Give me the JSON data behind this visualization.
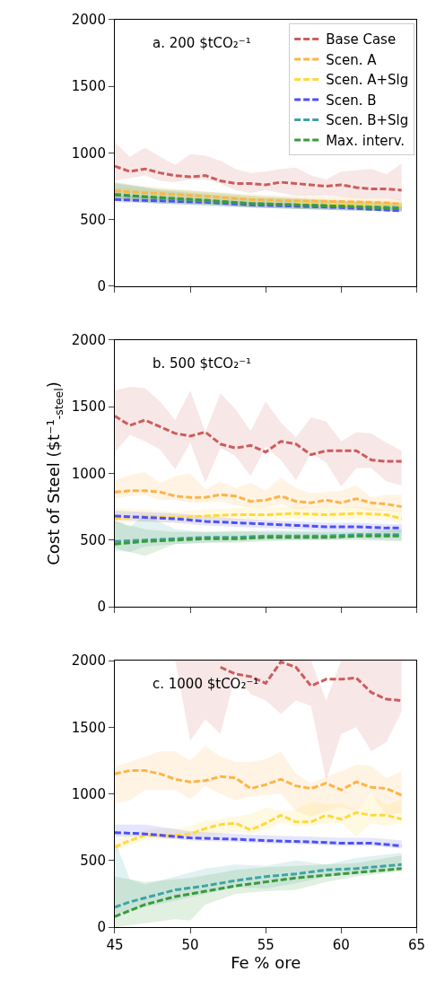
{
  "chart_data": [
    {
      "type": "line",
      "annotations": [
        "a. 200 $tCO₂⁻¹"
      ],
      "xlim": [
        45,
        65
      ],
      "xticks": [
        45,
        50,
        55,
        60,
        65
      ],
      "ylim": [
        0,
        2000
      ],
      "yticks": [
        0,
        500,
        1000,
        1500,
        2000
      ],
      "tick_labels": "y",
      "legend": "top right",
      "line_style": "dashed",
      "series": [
        {
          "name": "Base Case",
          "color": "#cd5c5c",
          "x": [
            45,
            46,
            47,
            48,
            49,
            50,
            51,
            52,
            53,
            54,
            55,
            56,
            57,
            58,
            59,
            60,
            61,
            62,
            63,
            64
          ],
          "values": [
            900,
            860,
            880,
            850,
            830,
            820,
            830,
            790,
            770,
            770,
            760,
            780,
            770,
            760,
            750,
            760,
            740,
            730,
            730,
            720
          ],
          "lower": [
            790,
            810,
            830,
            790,
            780,
            800,
            800,
            770,
            720,
            700,
            720,
            700,
            680,
            680,
            680,
            670,
            660,
            660,
            660,
            640
          ],
          "upper": [
            1080,
            970,
            1040,
            970,
            910,
            990,
            980,
            940,
            880,
            850,
            860,
            880,
            890,
            830,
            800,
            860,
            870,
            880,
            840,
            920
          ]
        },
        {
          "name": "Scen. A",
          "color": "#ffb347",
          "x": [
            45,
            48,
            51,
            54,
            57,
            60,
            63,
            64
          ],
          "values": [
            715,
            695,
            675,
            650,
            640,
            635,
            625,
            615
          ],
          "lower": [
            660,
            640,
            620,
            600,
            590,
            590,
            580,
            570
          ],
          "upper": [
            780,
            740,
            710,
            690,
            680,
            670,
            660,
            650
          ]
        },
        {
          "name": "Scen. A+Slg",
          "color": "#ffd93d",
          "x": [
            45,
            48,
            51,
            54,
            57,
            60,
            64
          ],
          "values": [
            null,
            null,
            null,
            null,
            620,
            610,
            600
          ],
          "lower": [
            650,
            630,
            610,
            590,
            580,
            570,
            560
          ],
          "upper": [
            740,
            720,
            700,
            680,
            660,
            650,
            640
          ]
        },
        {
          "name": "Scen. B",
          "color": "#4f4ff5",
          "x": [
            45,
            48,
            51,
            54,
            57,
            60,
            64
          ],
          "values": [
            650,
            640,
            630,
            610,
            600,
            590,
            565
          ],
          "lower": [
            630,
            620,
            610,
            590,
            580,
            570,
            560
          ],
          "upper": [
            680,
            670,
            650,
            630,
            620,
            610,
            600
          ]
        },
        {
          "name": "Scen. B+Slg",
          "color": "#3fa3a3",
          "x": [
            45,
            48,
            51,
            54,
            57,
            60,
            64
          ],
          "values": [
            690,
            660,
            640,
            620,
            610,
            600,
            590
          ],
          "lower": [
            640,
            620,
            600,
            590,
            580,
            570,
            560
          ],
          "upper": [
            780,
            720,
            690,
            660,
            650,
            640,
            630
          ]
        },
        {
          "name": "Max. interv.",
          "color": "#3a9a3a",
          "x": [
            45,
            48,
            51,
            54,
            57,
            60,
            64
          ],
          "values": [
            685,
            665,
            645,
            620,
            610,
            600,
            580
          ],
          "lower": [
            640,
            620,
            610,
            590,
            580,
            570,
            560
          ],
          "upper": [
            770,
            730,
            710,
            680,
            660,
            640,
            620
          ]
        }
      ]
    },
    {
      "type": "line",
      "annotations": [
        "b. 500 $tCO₂⁻¹"
      ],
      "ylabel": "Cost of Steel ($t⁻¹$_{-steel}$)",
      "xlim": [
        45,
        65
      ],
      "xticks": [
        45,
        50,
        55,
        60,
        65
      ],
      "ylim": [
        0,
        2000
      ],
      "yticks": [
        0,
        500,
        1000,
        1500,
        2000
      ],
      "tick_labels": "y",
      "line_style": "dashed",
      "series": [
        {
          "color": "#cd5c5c",
          "x": [
            45,
            46,
            47,
            48,
            49,
            50,
            51,
            52,
            53,
            54,
            55,
            56,
            57,
            58,
            59,
            60,
            61,
            62,
            63,
            64
          ],
          "values": [
            1430,
            1360,
            1400,
            1350,
            1300,
            1280,
            1310,
            1220,
            1190,
            1210,
            1160,
            1240,
            1220,
            1140,
            1170,
            1170,
            1170,
            1100,
            1090,
            1090
          ],
          "lower": [
            1160,
            1290,
            1240,
            1180,
            1030,
            1230,
            930,
            1190,
            1130,
            980,
            1200,
            1100,
            950,
            1150,
            1080,
            900,
            1040,
            1040,
            940,
            910
          ],
          "upper": [
            1620,
            1650,
            1640,
            1540,
            1400,
            1620,
            1310,
            1600,
            1480,
            1320,
            1540,
            1380,
            1270,
            1420,
            1390,
            1240,
            1310,
            1300,
            1230,
            1170
          ]
        },
        {
          "color": "#ffb347",
          "x": [
            45,
            46,
            47,
            48,
            49,
            50,
            51,
            52,
            53,
            54,
            55,
            56,
            57,
            58,
            59,
            60,
            61,
            62,
            63,
            64
          ],
          "values": [
            860,
            870,
            870,
            860,
            830,
            820,
            820,
            840,
            830,
            790,
            800,
            830,
            790,
            780,
            800,
            780,
            810,
            780,
            770,
            750
          ],
          "lower": [
            810,
            830,
            840,
            800,
            800,
            780,
            780,
            790,
            760,
            740,
            740,
            770,
            730,
            740,
            740,
            740,
            740,
            720,
            720,
            710
          ],
          "upper": [
            950,
            990,
            1010,
            930,
            980,
            1000,
            880,
            940,
            890,
            930,
            870,
            970,
            890,
            850,
            860,
            870,
            910,
            820,
            840,
            840
          ]
        },
        {
          "color": "#ffd93d",
          "x": [
            45,
            47,
            49,
            51,
            53,
            55,
            57,
            59,
            61,
            63,
            64
          ],
          "values": [
            660,
            680,
            670,
            680,
            690,
            690,
            700,
            690,
            700,
            690,
            660
          ],
          "lower": [
            620,
            640,
            630,
            640,
            650,
            650,
            660,
            650,
            660,
            650,
            620
          ],
          "upper": [
            740,
            730,
            710,
            730,
            740,
            740,
            750,
            740,
            750,
            730,
            720
          ]
        },
        {
          "color": "#4f4ff5",
          "x": [
            45,
            47,
            49,
            51,
            53,
            55,
            57,
            59,
            61,
            63,
            64
          ],
          "values": [
            680,
            670,
            660,
            640,
            630,
            620,
            610,
            600,
            600,
            590,
            590
          ],
          "lower": [
            650,
            640,
            630,
            610,
            600,
            590,
            580,
            570,
            570,
            560,
            560
          ],
          "upper": [
            720,
            710,
            700,
            680,
            660,
            650,
            640,
            630,
            630,
            620,
            620
          ]
        },
        {
          "color": "#3fa3a3",
          "x": [
            45,
            46,
            47,
            49,
            51,
            53,
            55,
            57,
            59,
            61,
            64
          ],
          "values": [
            490,
            495,
            500,
            510,
            520,
            520,
            530,
            530,
            530,
            540,
            540
          ],
          "lower": [
            420,
            410,
            450,
            470,
            480,
            490,
            500,
            500,
            500,
            510,
            500
          ],
          "upper": [
            650,
            600,
            690,
            580,
            560,
            560,
            570,
            570,
            570,
            570,
            580
          ]
        },
        {
          "color": "#3a9a3a",
          "x": [
            45,
            47,
            49,
            51,
            53,
            55,
            57,
            59,
            61,
            64
          ],
          "values": [
            470,
            490,
            500,
            510,
            510,
            520,
            520,
            520,
            530,
            530
          ],
          "lower": [
            440,
            380,
            470,
            480,
            480,
            490,
            500,
            500,
            500,
            490
          ],
          "upper": [
            640,
            580,
            560,
            560,
            570,
            560,
            560,
            560,
            560,
            570
          ]
        }
      ]
    },
    {
      "type": "line",
      "annotations": [
        "c. 1000 $tCO₂⁻¹"
      ],
      "xlabel": "Fe % ore",
      "xlim": [
        45,
        65
      ],
      "xticks": [
        45,
        50,
        55,
        60,
        65
      ],
      "ylim": [
        0,
        2000
      ],
      "yticks": [
        0,
        500,
        1000,
        1500,
        2000
      ],
      "line_style": "dashed",
      "series": [
        {
          "color": "#cd5c5c",
          "x": [
            49,
            50,
            51,
            52,
            53,
            54,
            55,
            56,
            57,
            58,
            59,
            60,
            61,
            62,
            63,
            64
          ],
          "values": [
            null,
            null,
            null,
            1950,
            1900,
            1880,
            1830,
            1990,
            1950,
            1810,
            1860,
            1860,
            1870,
            1760,
            1710,
            1700
          ],
          "lower": [
            2000,
            1400,
            1560,
            1450,
            1900,
            1750,
            1700,
            1600,
            1700,
            1660,
            1100,
            1450,
            1500,
            1320,
            1390,
            1620
          ],
          "upper": [
            2000,
            2000,
            2000,
            2000,
            2000,
            2000,
            2000,
            2000,
            2000,
            2000,
            1700,
            2000,
            2000,
            2000,
            2000,
            2000
          ]
        },
        {
          "color": "#ffb347",
          "x": [
            45,
            46,
            47,
            48,
            49,
            50,
            51,
            52,
            53,
            54,
            55,
            56,
            57,
            58,
            59,
            60,
            61,
            62,
            63,
            64
          ],
          "values": [
            1150,
            1175,
            1175,
            1150,
            1110,
            1090,
            1100,
            1130,
            1120,
            1040,
            1070,
            1110,
            1060,
            1040,
            1080,
            1030,
            1090,
            1050,
            1040,
            990
          ],
          "lower": [
            930,
            950,
            1030,
            1030,
            1030,
            960,
            1060,
            1000,
            950,
            980,
            990,
            1000,
            870,
            830,
            870,
            900,
            870,
            1000,
            840,
            860
          ],
          "upper": [
            1210,
            1240,
            1280,
            1320,
            1320,
            1250,
            1360,
            1280,
            1240,
            1240,
            1260,
            1320,
            1150,
            1080,
            1130,
            1170,
            1220,
            1210,
            1120,
            1170
          ]
        },
        {
          "color": "#ffd93d",
          "x": [
            45,
            46,
            47,
            48,
            49,
            50,
            51,
            52,
            53,
            54,
            55,
            56,
            57,
            58,
            59,
            60,
            61,
            62,
            63,
            64
          ],
          "values": [
            600,
            650,
            690,
            690,
            690,
            700,
            740,
            770,
            780,
            730,
            780,
            840,
            790,
            790,
            840,
            810,
            860,
            840,
            840,
            810
          ],
          "lower": [
            560,
            620,
            650,
            660,
            660,
            670,
            680,
            700,
            720,
            700,
            730,
            780,
            760,
            760,
            780,
            780,
            680,
            780,
            760,
            780
          ],
          "upper": [
            650,
            700,
            730,
            740,
            740,
            760,
            800,
            810,
            830,
            850,
            900,
            870,
            880,
            940,
            920,
            930,
            880,
            990,
            920,
            960
          ]
        },
        {
          "color": "#4f4ff5",
          "x": [
            45,
            47,
            50,
            53,
            55,
            58,
            60,
            62,
            64
          ],
          "values": [
            710,
            700,
            670,
            660,
            650,
            640,
            630,
            630,
            610
          ],
          "lower": [
            680,
            680,
            650,
            640,
            630,
            620,
            610,
            610,
            590
          ],
          "upper": [
            770,
            770,
            720,
            700,
            690,
            680,
            670,
            670,
            650
          ]
        },
        {
          "color": "#3fa3a3",
          "x": [
            45,
            46,
            47,
            49,
            51,
            53,
            55,
            57,
            59,
            61,
            64
          ],
          "values": [
            150,
            190,
            220,
            280,
            310,
            350,
            380,
            400,
            430,
            440,
            470
          ],
          "lower": [
            100,
            120,
            150,
            200,
            250,
            300,
            290,
            330,
            380,
            400,
            430
          ],
          "upper": [
            650,
            360,
            320,
            380,
            440,
            470,
            460,
            500,
            470,
            520,
            560
          ]
        },
        {
          "color": "#3a9a3a",
          "x": [
            45,
            47,
            49,
            50,
            51,
            53,
            55,
            57,
            59,
            61,
            64
          ],
          "values": [
            80,
            170,
            230,
            250,
            270,
            310,
            340,
            370,
            390,
            410,
            440
          ],
          "lower": [
            0,
            30,
            60,
            50,
            170,
            250,
            270,
            280,
            340,
            380,
            420
          ],
          "upper": [
            380,
            340,
            360,
            370,
            390,
            430,
            450,
            460,
            470,
            480,
            540
          ]
        }
      ]
    }
  ]
}
